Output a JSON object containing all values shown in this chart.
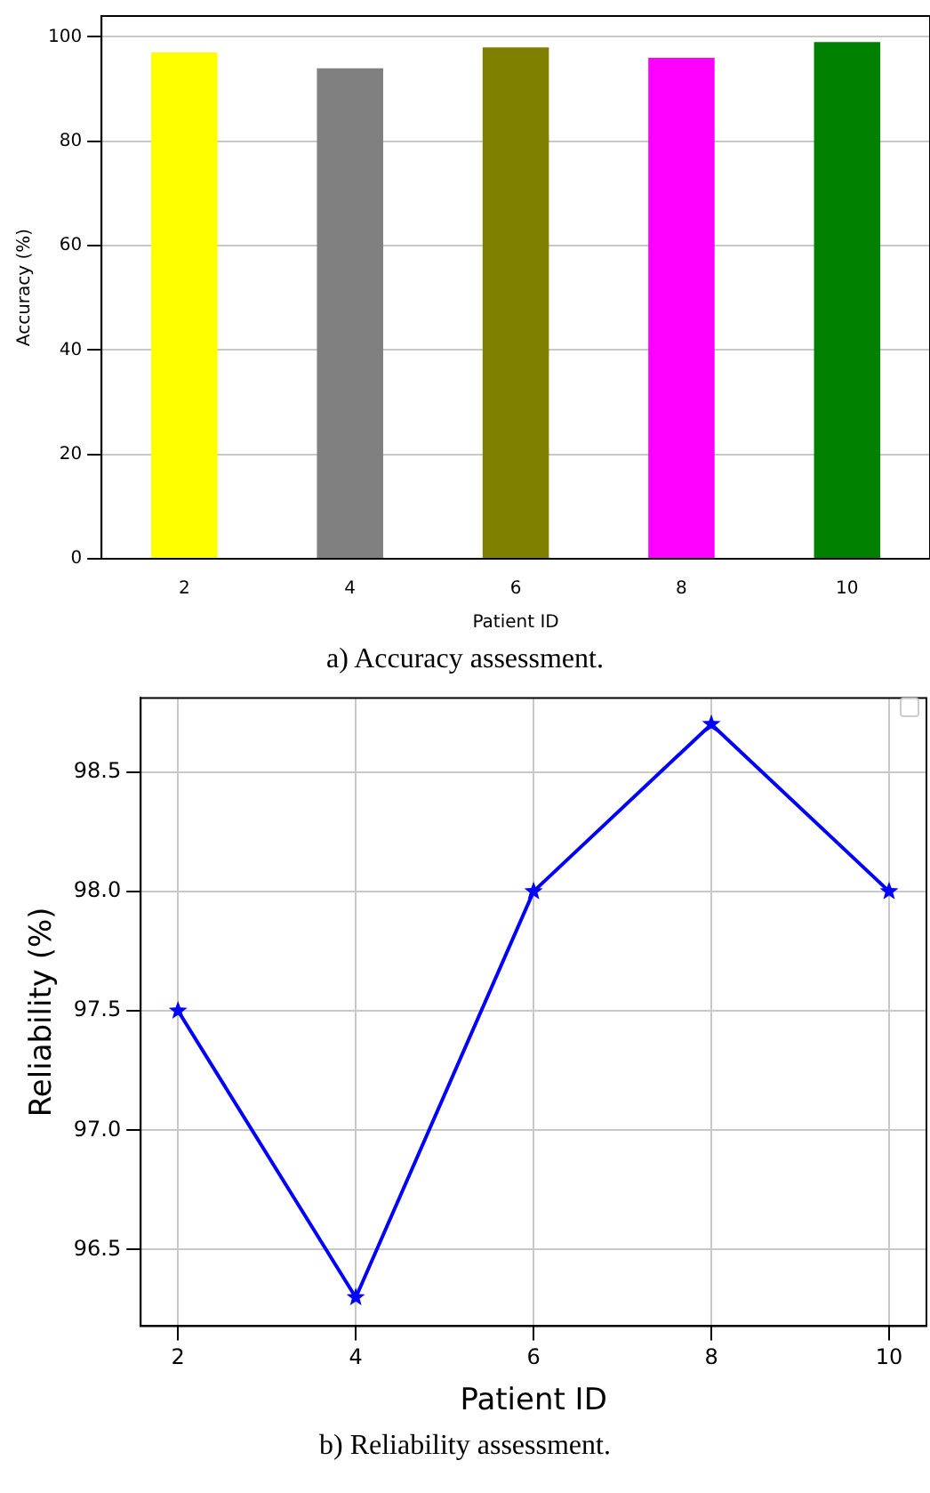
{
  "chart_data": [
    {
      "type": "bar",
      "categories": [
        "2",
        "4",
        "6",
        "8",
        "10"
      ],
      "values": [
        97,
        94,
        98,
        96,
        99
      ],
      "colors": [
        "#ffff00",
        "#808080",
        "#808000",
        "#ff00ff",
        "#008000"
      ],
      "xlabel": "Patient ID",
      "ylabel": "Accuracy (%)",
      "ylim": [
        0,
        104
      ],
      "yticks": [
        0,
        20,
        40,
        60,
        80,
        100
      ],
      "grid": "y",
      "annotations": [
        "a) Accuracy assessment."
      ]
    },
    {
      "type": "line",
      "x": [
        2,
        4,
        6,
        8,
        10
      ],
      "series": [
        {
          "color": "#0000ff",
          "values": [
            97.5,
            96.3,
            98.0,
            98.7,
            98.0
          ]
        }
      ],
      "marker": "star",
      "xlabel": "Patient ID",
      "ylabel": "Reliability (%)",
      "xlim": [
        1.58,
        10.42
      ],
      "xticks": [
        2,
        4,
        6,
        8,
        10
      ],
      "ylim": [
        96.18,
        98.81
      ],
      "yticks": [
        {
          "value": 96.5,
          "label": "96.5"
        },
        {
          "value": 97,
          "label": "97.0"
        },
        {
          "value": 97.5,
          "label": "97.5"
        },
        {
          "value": 98,
          "label": "98.0"
        },
        {
          "value": 98.5,
          "label": "98.5"
        }
      ],
      "grid": true,
      "annotations": [
        "b) Reliability assessment."
      ]
    }
  ]
}
